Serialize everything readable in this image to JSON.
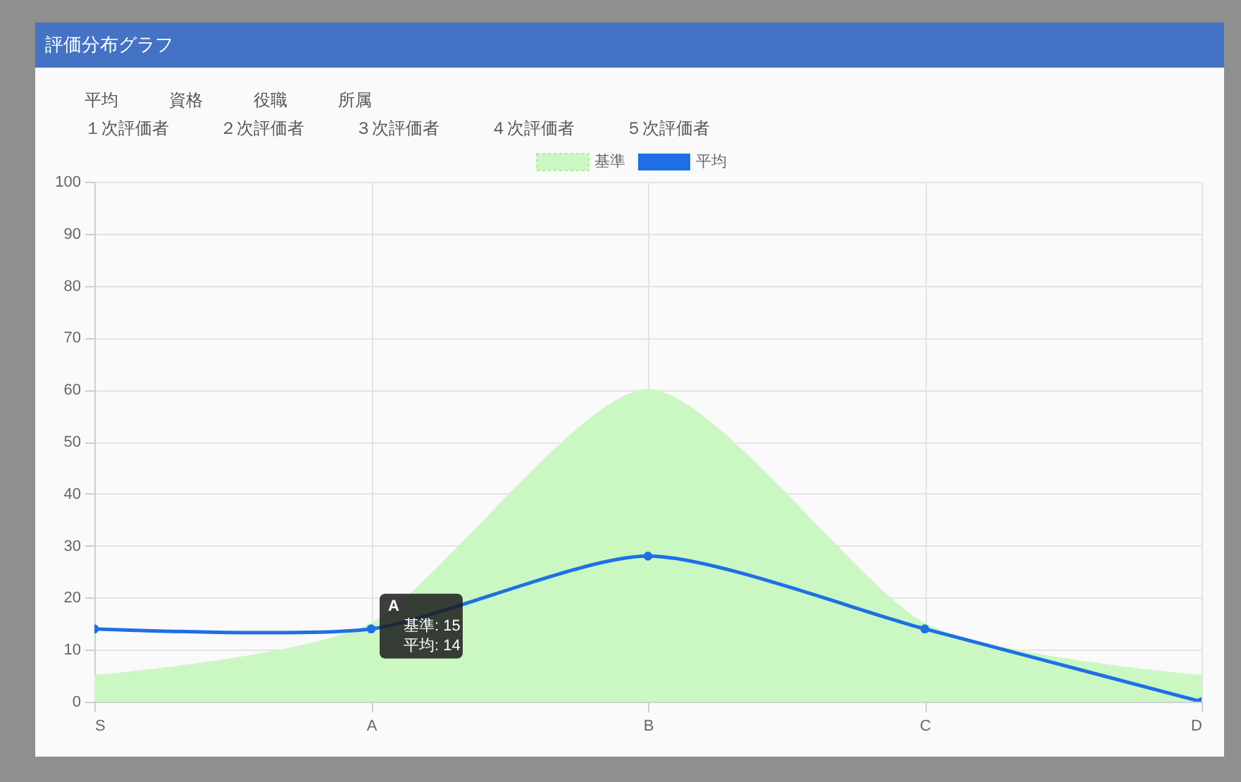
{
  "chart_data": {
    "type": "line",
    "title": "評価分布グラフ",
    "categories": [
      "S",
      "A",
      "B",
      "C",
      "D"
    ],
    "series": [
      {
        "name": "基準",
        "type": "area",
        "color": "#cbf7c3",
        "values": [
          5,
          15,
          60,
          15,
          5
        ]
      },
      {
        "name": "平均",
        "type": "line",
        "color": "#1e6fe6",
        "marker": "circle",
        "values": [
          14,
          14,
          28,
          14,
          0
        ]
      }
    ],
    "ylim": [
      0,
      100
    ],
    "yticks": [
      0,
      10,
      20,
      30,
      40,
      50,
      60,
      70,
      80,
      90,
      100
    ],
    "grid": true,
    "legend": "top",
    "annotations": [
      "平均",
      "資格",
      "役職",
      "所属",
      "１次評価者",
      "２次評価者",
      "３次評価者",
      "４次評価者",
      "５次評価者",
      {
        "text": "A\n基準: 15\n平均: 14",
        "x": "A",
        "y": 14
      }
    ]
  }
}
